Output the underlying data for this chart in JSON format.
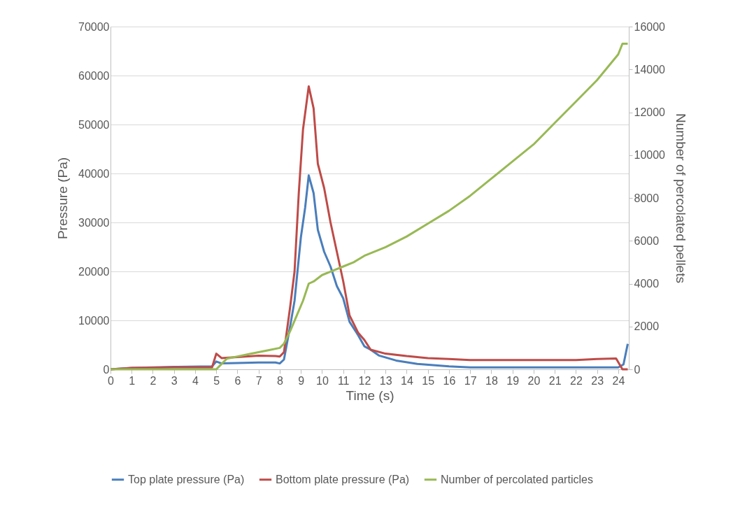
{
  "chart_data": {
    "type": "line",
    "xlabel": "Time (s)",
    "ylabel": "Pressure (Pa)",
    "y2label": "Number of percolated pellets",
    "xlim": [
      0,
      24.5
    ],
    "xticks": [
      0,
      1,
      2,
      3,
      4,
      5,
      6,
      7,
      8,
      9,
      10,
      11,
      12,
      13,
      14,
      15,
      16,
      17,
      18,
      19,
      20,
      21,
      22,
      23,
      24
    ],
    "ylim": [
      0,
      70000
    ],
    "yticks": [
      0,
      10000,
      20000,
      30000,
      40000,
      50000,
      60000,
      70000
    ],
    "y2lim": [
      0,
      16000
    ],
    "y2ticks": [
      0,
      2000,
      4000,
      6000,
      8000,
      10000,
      12000,
      14000,
      16000
    ],
    "grid": "y",
    "legend": "bottom",
    "line_style": "solid",
    "marker": "none",
    "series": [
      {
        "name": "Top plate pressure (Pa)",
        "color": "#4a7ebb",
        "x": [
          0,
          1,
          3,
          4.8,
          5.0,
          5.25,
          6,
          7,
          7.8,
          8.0,
          8.2,
          8.5,
          8.7,
          9.0,
          9.2,
          9.37,
          9.6,
          9.8,
          10.1,
          10.4,
          10.7,
          11.0,
          11.3,
          11.7,
          12.0,
          12.3,
          12.7,
          13.5,
          14.5,
          16,
          17,
          24,
          24.25,
          24.45
        ],
        "values": [
          0,
          300,
          500,
          600,
          1600,
          1200,
          1300,
          1400,
          1400,
          1200,
          2000,
          9000,
          14000,
          27000,
          33000,
          39600,
          36000,
          28500,
          24000,
          21000,
          17000,
          14500,
          9700,
          7000,
          4700,
          4000,
          2800,
          1800,
          1100,
          600,
          400,
          400,
          1000,
          5200
        ]
      },
      {
        "name": "Bottom plate pressure (Pa)",
        "color": "#be4b48",
        "x": [
          0,
          1,
          3,
          4.8,
          5.0,
          5.25,
          6,
          7,
          7.8,
          8.0,
          8.2,
          8.5,
          8.7,
          8.9,
          9.1,
          9.37,
          9.6,
          9.8,
          10.1,
          10.4,
          10.7,
          11.0,
          11.3,
          11.7,
          12.0,
          12.3,
          13,
          14,
          15,
          16,
          17,
          18,
          20,
          22,
          23,
          23.9,
          24.2,
          24.45
        ],
        "values": [
          0,
          300,
          400,
          400,
          3200,
          2300,
          2500,
          2800,
          2700,
          2600,
          3500,
          13000,
          20000,
          36000,
          49000,
          57800,
          53300,
          42000,
          37000,
          30000,
          24000,
          18000,
          11000,
          7500,
          6000,
          4000,
          3200,
          2700,
          2300,
          2100,
          1900,
          1900,
          1900,
          1900,
          2100,
          2200,
          0,
          0
        ]
      },
      {
        "name": "Number of percolated particles",
        "color": "#98b954",
        "axis": "y2",
        "x": [
          0,
          5.0,
          5.2,
          5.5,
          6,
          6.5,
          7,
          7.5,
          8.0,
          8.2,
          8.5,
          8.8,
          9.1,
          9.37,
          9.6,
          10,
          10.5,
          11,
          11.5,
          12,
          13,
          14,
          15,
          16,
          17,
          18,
          19,
          20,
          21,
          22,
          23,
          24,
          24.2,
          24.45
        ],
        "values": [
          0,
          0,
          200,
          500,
          600,
          700,
          800,
          900,
          1000,
          1200,
          1800,
          2500,
          3200,
          4000,
          4100,
          4400,
          4600,
          4800,
          5000,
          5300,
          5700,
          6200,
          6800,
          7400,
          8100,
          8900,
          9700,
          10500,
          11500,
          12500,
          13500,
          14700,
          15200,
          15200
        ]
      }
    ]
  }
}
